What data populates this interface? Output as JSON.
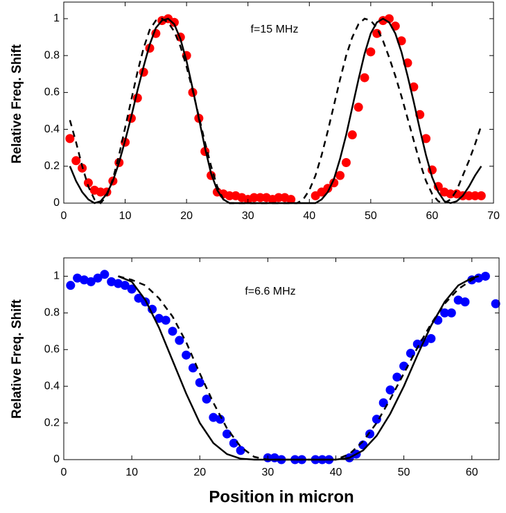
{
  "chart_data": [
    {
      "type": "scatter",
      "ylabel": "Relative Freq. Shift",
      "annotation": "f=15 MHz",
      "xlim": [
        0,
        70
      ],
      "ylim": [
        0,
        1.09
      ],
      "xticks": [
        0,
        10,
        20,
        30,
        40,
        50,
        60,
        70
      ],
      "yticks": [
        0,
        0.2,
        0.4,
        0.6,
        0.8,
        1
      ],
      "series": [
        {
          "style": "marker",
          "color": "#ff0000",
          "x": [
            1,
            2,
            3,
            4,
            5,
            6,
            7,
            8,
            9,
            10,
            11,
            12,
            13,
            14,
            15,
            16,
            17,
            18,
            19,
            20,
            21,
            22,
            23,
            24,
            25,
            26,
            27,
            28,
            29,
            30,
            31,
            32,
            33,
            34,
            35,
            36,
            37,
            41,
            42,
            43,
            44,
            45,
            46,
            47,
            48,
            49,
            50,
            51,
            52,
            53,
            54,
            55,
            56,
            57,
            58,
            59,
            60,
            61,
            62,
            63,
            64,
            65,
            66,
            67,
            68
          ],
          "values": [
            0.35,
            0.23,
            0.19,
            0.11,
            0.07,
            0.06,
            0.06,
            0.12,
            0.22,
            0.33,
            0.46,
            0.57,
            0.71,
            0.84,
            0.92,
            0.99,
            1.0,
            0.98,
            0.9,
            0.8,
            0.6,
            0.46,
            0.28,
            0.15,
            0.06,
            0.05,
            0.04,
            0.04,
            0.03,
            0.02,
            0.03,
            0.03,
            0.03,
            0.02,
            0.03,
            0.03,
            0.02,
            0.04,
            0.06,
            0.08,
            0.11,
            0.15,
            0.22,
            0.37,
            0.52,
            0.68,
            0.82,
            0.92,
            0.99,
            1.0,
            0.96,
            0.88,
            0.76,
            0.63,
            0.48,
            0.35,
            0.18,
            0.09,
            0.06,
            0.05,
            0.05,
            0.04,
            0.04,
            0.04,
            0.04
          ]
        },
        {
          "style": "solid",
          "color": "#000000",
          "x": [
            1,
            2,
            3,
            4,
            5,
            6,
            7,
            8,
            9,
            10,
            11,
            12,
            13,
            14,
            15,
            16,
            17,
            18,
            19,
            20,
            21,
            22,
            23,
            24,
            25,
            26,
            27,
            41,
            42,
            43,
            44,
            45,
            46,
            47,
            48,
            49,
            50,
            51,
            52,
            53,
            54,
            55,
            56,
            57,
            58,
            59,
            60,
            61,
            62,
            63,
            64,
            65,
            66,
            67,
            68
          ],
          "values": [
            0.2,
            0.12,
            0.06,
            0.02,
            0,
            0.01,
            0.05,
            0.12,
            0.22,
            0.34,
            0.47,
            0.61,
            0.74,
            0.86,
            0.95,
            0.99,
            1.0,
            0.97,
            0.89,
            0.77,
            0.62,
            0.46,
            0.3,
            0.16,
            0.07,
            0.02,
            0,
            0,
            0.02,
            0.06,
            0.13,
            0.24,
            0.37,
            0.52,
            0.67,
            0.81,
            0.92,
            0.98,
            1.0,
            0.98,
            0.92,
            0.82,
            0.69,
            0.55,
            0.4,
            0.26,
            0.14,
            0.06,
            0.01,
            0,
            0.01,
            0.04,
            0.09,
            0.15,
            0.2
          ]
        },
        {
          "style": "dashed",
          "color": "#000000",
          "x": [
            1,
            2,
            3,
            4,
            5,
            6,
            7,
            8,
            9,
            10,
            11,
            12,
            13,
            14,
            15,
            16,
            17,
            18,
            19,
            20,
            21,
            22,
            23,
            24,
            25,
            26,
            27,
            38,
            39,
            40,
            41,
            42,
            43,
            44,
            45,
            46,
            47,
            48,
            49,
            50,
            51,
            52,
            53,
            54,
            55,
            56,
            57,
            58,
            59,
            60,
            61,
            62,
            63,
            64,
            65,
            66,
            67,
            68
          ],
          "values": [
            0.45,
            0.33,
            0.2,
            0.09,
            0.02,
            0,
            0.04,
            0.13,
            0.26,
            0.41,
            0.56,
            0.71,
            0.84,
            0.94,
            0.99,
            1.0,
            0.98,
            0.93,
            0.85,
            0.74,
            0.61,
            0.47,
            0.33,
            0.2,
            0.09,
            0.02,
            0,
            0,
            0.02,
            0.07,
            0.15,
            0.26,
            0.39,
            0.53,
            0.67,
            0.8,
            0.9,
            0.97,
            1.0,
            0.99,
            0.95,
            0.88,
            0.79,
            0.69,
            0.58,
            0.46,
            0.34,
            0.22,
            0.12,
            0.05,
            0.01,
            0,
            0.02,
            0.07,
            0.15,
            0.23,
            0.32,
            0.42
          ]
        }
      ]
    },
    {
      "type": "scatter",
      "ylabel": "Relative Freq. Shift",
      "xlabel": "Position in micron",
      "annotation": "f=6.6 MHz",
      "xlim": [
        0,
        64
      ],
      "ylim": [
        0,
        1.1
      ],
      "xticks": [
        0,
        10,
        20,
        30,
        40,
        50,
        60
      ],
      "yticks": [
        0,
        0.2,
        0.4,
        0.6,
        0.8,
        1
      ],
      "series": [
        {
          "style": "marker",
          "color": "#0000ff",
          "x": [
            1,
            2,
            3,
            4,
            5,
            6,
            7,
            8,
            9,
            10,
            11,
            12,
            13,
            14,
            15,
            16,
            17,
            18,
            19,
            20,
            21,
            22,
            23,
            24,
            25,
            26,
            30,
            31,
            32,
            34,
            35,
            37,
            38,
            39,
            42,
            43,
            44,
            45,
            46,
            47,
            48,
            49,
            50,
            51,
            52,
            53,
            54,
            55,
            56,
            57,
            58,
            59,
            60,
            61,
            62,
            63.5
          ],
          "values": [
            0.95,
            0.99,
            0.98,
            0.97,
            0.99,
            1.01,
            0.97,
            0.96,
            0.95,
            0.93,
            0.88,
            0.86,
            0.82,
            0.77,
            0.76,
            0.7,
            0.65,
            0.57,
            0.5,
            0.42,
            0.33,
            0.23,
            0.22,
            0.14,
            0.09,
            0.05,
            0.01,
            0.01,
            0,
            0,
            0,
            0,
            0,
            0,
            0.01,
            0.03,
            0.08,
            0.14,
            0.22,
            0.31,
            0.38,
            0.45,
            0.51,
            0.58,
            0.63,
            0.64,
            0.66,
            0.76,
            0.8,
            0.8,
            0.87,
            0.86,
            0.98,
            0.99,
            1.0,
            0.85
          ]
        },
        {
          "style": "solid",
          "color": "#000000",
          "x": [
            8,
            10,
            12,
            14,
            16,
            18,
            20,
            22,
            24,
            26,
            28,
            40,
            42,
            44,
            46,
            48,
            50,
            52,
            54,
            56,
            58,
            60,
            61
          ],
          "values": [
            1,
            0.97,
            0.87,
            0.72,
            0.54,
            0.36,
            0.2,
            0.09,
            0.03,
            0.005,
            0,
            0,
            0.01,
            0.05,
            0.13,
            0.25,
            0.4,
            0.57,
            0.73,
            0.86,
            0.95,
            0.99,
            1.0
          ]
        },
        {
          "style": "dashed",
          "color": "#000000",
          "x": [
            8,
            10,
            12,
            14,
            16,
            18,
            20,
            22,
            24,
            26,
            28,
            30,
            40,
            42,
            44,
            46,
            48,
            50,
            52,
            54,
            56,
            58,
            60,
            61
          ],
          "values": [
            1,
            0.98,
            0.95,
            0.88,
            0.78,
            0.64,
            0.47,
            0.31,
            0.17,
            0.07,
            0.015,
            0,
            0,
            0.03,
            0.1,
            0.2,
            0.33,
            0.47,
            0.61,
            0.74,
            0.85,
            0.93,
            0.98,
            1.0
          ]
        }
      ]
    }
  ]
}
